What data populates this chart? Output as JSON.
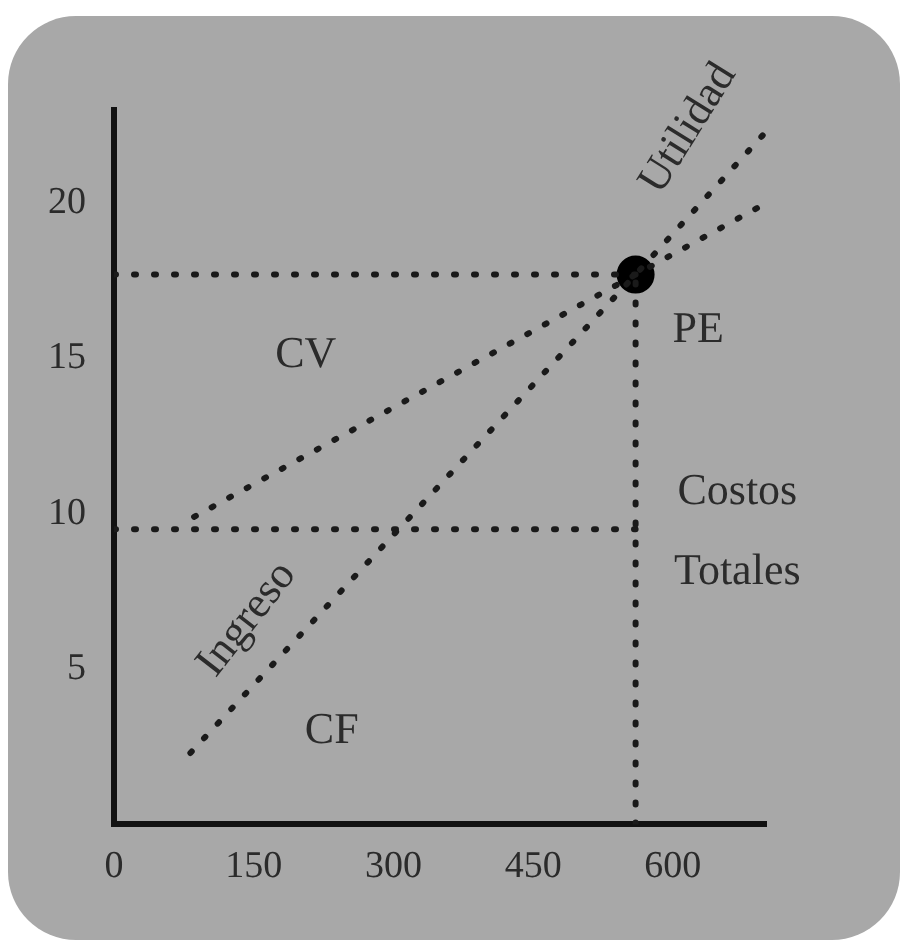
{
  "chart_data": {
    "type": "line",
    "xlim": [
      0,
      700
    ],
    "ylim": [
      0,
      23
    ],
    "xticks": [
      0,
      150,
      300,
      450,
      600
    ],
    "yticks": [
      5,
      10,
      15,
      20
    ],
    "grid": false,
    "legend": false,
    "line_style": "dotted",
    "marker": "none",
    "series": [
      {
        "color": "#1a1a1a",
        "x": [
          82,
          560,
          700
        ],
        "values": [
          2.3,
          17.7,
          22.3
        ]
      },
      {
        "color": "#1a1a1a",
        "x": [
          86,
          560,
          700
        ],
        "values": [
          9.9,
          17.7,
          20.0
        ]
      },
      {
        "color": "#1a1a1a",
        "x": [
          0,
          560
        ],
        "values": [
          17.7,
          17.7
        ]
      },
      {
        "color": "#1a1a1a",
        "x": [
          560,
          560
        ],
        "values": [
          0,
          17.7
        ]
      },
      {
        "color": "#1a1a1a",
        "x": [
          0,
          560
        ],
        "values": [
          9.5,
          9.5
        ]
      },
      {
        "type": "scatter",
        "marker": "circle",
        "color": "#000000",
        "x": [
          560
        ],
        "values": [
          17.7
        ]
      }
    ],
    "annotations": [
      "CV",
      "CF",
      "PE",
      "Costos Totales",
      "Utilidad",
      "Ingreso"
    ]
  }
}
